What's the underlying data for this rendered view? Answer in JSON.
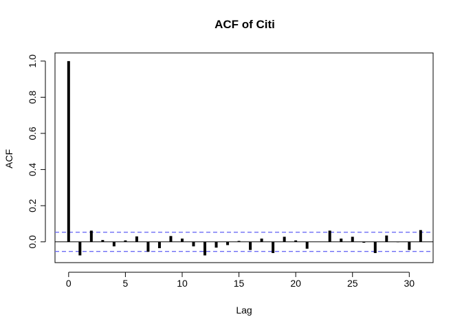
{
  "chart_data": {
    "type": "bar",
    "title": "ACF of Citi",
    "xlabel": "Lag",
    "ylabel": "ACF",
    "xlim": [
      -1.2,
      32.1
    ],
    "ylim": [
      -0.115,
      1.045
    ],
    "xticks": [
      0,
      5,
      10,
      15,
      20,
      25,
      30
    ],
    "xtick_labels": [
      "0",
      "5",
      "10",
      "15",
      "20",
      "25",
      "30"
    ],
    "yticks": [
      0.0,
      0.2,
      0.4,
      0.6,
      0.8,
      1.0
    ],
    "ytick_labels": [
      "0.0",
      "0.2",
      "0.4",
      "0.6",
      "0.8",
      "1.0"
    ],
    "lags": [
      0,
      1,
      2,
      3,
      4,
      5,
      6,
      7,
      8,
      9,
      10,
      11,
      12,
      13,
      14,
      15,
      16,
      17,
      18,
      19,
      20,
      21,
      22,
      23,
      24,
      25,
      26,
      27,
      28,
      29,
      30,
      31
    ],
    "values": [
      1.0,
      -0.075,
      0.062,
      0.01,
      -0.025,
      0.008,
      0.03,
      -0.055,
      -0.035,
      0.032,
      0.018,
      -0.025,
      -0.075,
      -0.032,
      -0.018,
      0.005,
      -0.045,
      0.018,
      -0.062,
      0.028,
      0.008,
      -0.038,
      0.0,
      0.062,
      0.018,
      0.028,
      -0.005,
      -0.062,
      0.035,
      -0.002,
      -0.045,
      0.065
    ],
    "confidence_bound": 0.053,
    "grid": false,
    "colors": {
      "bars": "#000000",
      "zero_line": "#000000",
      "confidence": "#6b6bf5",
      "frame": "#000000"
    }
  }
}
